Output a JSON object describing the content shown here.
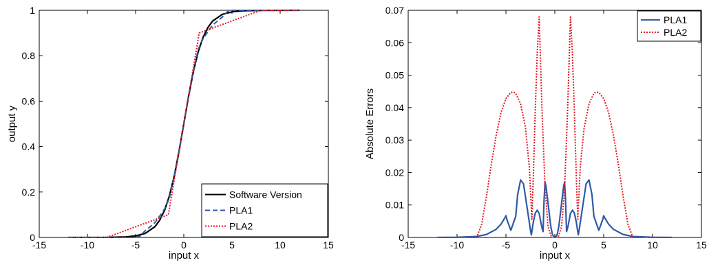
{
  "chart_data": [
    {
      "type": "line",
      "xlabel": "input x",
      "ylabel": "output y",
      "xlim": [
        -15,
        15
      ],
      "ylim": [
        0,
        1
      ],
      "xticks": [
        "-15",
        "-10",
        "-5",
        "0",
        "5",
        "10",
        "15"
      ],
      "yticks": [
        "0",
        "0.2",
        "0.4",
        "0.6",
        "0.8",
        "1"
      ],
      "grid": false,
      "legend_position": "bottom-right",
      "series": [
        {
          "name": "Software Version",
          "color": "#000000",
          "style": "solid",
          "x": [
            -12,
            -8,
            -6,
            -5,
            -4,
            -3,
            -2.5,
            -2,
            -1.5,
            -1,
            -0.5,
            0,
            0.5,
            1,
            1.5,
            2,
            2.5,
            3,
            4,
            5,
            6,
            8,
            12
          ],
          "y": [
            0.0,
            0.0003,
            0.0025,
            0.0067,
            0.018,
            0.047,
            0.076,
            0.119,
            0.182,
            0.269,
            0.378,
            0.5,
            0.622,
            0.731,
            0.818,
            0.881,
            0.924,
            0.953,
            0.982,
            0.993,
            0.9975,
            0.9997,
            1.0
          ]
        },
        {
          "name": "PLA1",
          "color": "#2e5aa8",
          "style": "dashed",
          "x": [
            -12,
            -5,
            -4.5,
            -4,
            -3.5,
            -3,
            -2.5,
            -2,
            -1.5,
            -1,
            -0.5,
            0,
            0.5,
            1,
            1.5,
            2,
            2.5,
            3,
            3.5,
            4,
            4.5,
            5,
            12
          ],
          "y": [
            0.0,
            0.0,
            0.007,
            0.03,
            0.047,
            0.065,
            0.094,
            0.125,
            0.172,
            0.267,
            0.375,
            0.5,
            0.625,
            0.733,
            0.828,
            0.875,
            0.906,
            0.935,
            0.953,
            0.97,
            0.993,
            1.0,
            1.0
          ]
        },
        {
          "name": "PLA2",
          "color": "#e8141c",
          "style": "dotted",
          "x": [
            -12,
            -8,
            -1.6,
            1.6,
            8,
            12
          ],
          "y": [
            0.0,
            0.0,
            0.1,
            0.9,
            1.0,
            1.0
          ]
        }
      ]
    },
    {
      "type": "line",
      "xlabel": "input x",
      "ylabel": "Absolute Errors",
      "xlim": [
        -15,
        15
      ],
      "ylim": [
        0,
        0.07
      ],
      "xticks": [
        "-15",
        "-10",
        "-5",
        "0",
        "5",
        "10",
        "15"
      ],
      "yticks": [
        "0",
        "0.01",
        "0.02",
        "0.03",
        "0.04",
        "0.05",
        "0.06",
        "0.07"
      ],
      "grid": false,
      "legend_position": "top-right",
      "series": [
        {
          "name": "PLA1",
          "color": "#2e5aa8",
          "style": "solid",
          "x": [
            -12,
            -10,
            -8,
            -7,
            -6,
            -5.5,
            -5.1,
            -5,
            -4.9,
            -4.5,
            -4,
            -3.8,
            -3.5,
            -3.2,
            -3,
            -2.8,
            -2.6,
            -2.5,
            -2.4,
            -2.2,
            -2,
            -1.8,
            -1.6,
            -1.5,
            -1.4,
            -1.3,
            -1.2,
            -1.1,
            -1,
            -0.9,
            -0.75,
            -0.6,
            -0.5,
            -0.4,
            -0.25,
            -0.1,
            0,
            0.1,
            0.25,
            0.4,
            0.5,
            0.6,
            0.75,
            0.9,
            1,
            1.1,
            1.2,
            1.3,
            1.4,
            1.5,
            1.6,
            1.8,
            2,
            2.2,
            2.4,
            2.5,
            2.6,
            2.8,
            3,
            3.2,
            3.5,
            3.8,
            4,
            4.5,
            4.9,
            5,
            5.1,
            5.5,
            6,
            7,
            8,
            10,
            12
          ],
          "y": [
            0.0,
            5e-05,
            0.0003,
            0.0009,
            0.0025,
            0.0041,
            0.0061,
            0.0067,
            0.0055,
            0.0022,
            0.0065,
            0.0132,
            0.0177,
            0.0165,
            0.0125,
            0.0085,
            0.0045,
            0.0024,
            0.0008,
            0.0047,
            0.0075,
            0.0084,
            0.0074,
            0.0058,
            0.0042,
            0.0028,
            0.0018,
            0.0115,
            0.017,
            0.0158,
            0.012,
            0.0082,
            0.0055,
            0.0032,
            0.001,
            0.0002,
            0.0,
            0.0002,
            0.001,
            0.0032,
            0.0055,
            0.0082,
            0.012,
            0.0158,
            0.017,
            0.0115,
            0.0018,
            0.0028,
            0.0042,
            0.0058,
            0.0074,
            0.0084,
            0.0075,
            0.0047,
            0.0008,
            0.0024,
            0.0045,
            0.0085,
            0.0125,
            0.0165,
            0.0177,
            0.0132,
            0.0065,
            0.0022,
            0.0055,
            0.0067,
            0.0061,
            0.0041,
            0.0025,
            0.0009,
            0.0003,
            5e-05,
            0.0
          ]
        },
        {
          "name": "PLA2",
          "color": "#e8141c",
          "style": "dotted",
          "x": [
            -12,
            -8,
            -7.5,
            -7,
            -6.5,
            -6,
            -5.5,
            -5,
            -4.5,
            -4.2,
            -4,
            -3.5,
            -3,
            -2.6,
            -2.35,
            -2.2,
            -2,
            -1.8,
            -1.6,
            -1.3,
            -1,
            -0.7,
            -0.4,
            -0.2,
            0,
            0.2,
            0.4,
            0.7,
            1,
            1.3,
            1.6,
            1.8,
            2,
            2.2,
            2.35,
            2.6,
            3,
            3.5,
            4,
            4.2,
            4.5,
            5,
            5.5,
            6,
            6.5,
            7,
            7.5,
            8,
            12
          ],
          "y": [
            0.0,
            0.0,
            0.0038,
            0.0125,
            0.0225,
            0.0315,
            0.0385,
            0.0428,
            0.0447,
            0.0448,
            0.0444,
            0.0412,
            0.0338,
            0.0215,
            0.0056,
            0.0185,
            0.039,
            0.0568,
            0.068,
            0.0385,
            0.0154,
            0.0035,
            0.0005,
            0.0001,
            0.0,
            0.0001,
            0.0005,
            0.0035,
            0.0154,
            0.0385,
            0.068,
            0.0568,
            0.039,
            0.0185,
            0.0056,
            0.0215,
            0.0338,
            0.0412,
            0.0444,
            0.0448,
            0.0447,
            0.0428,
            0.0385,
            0.0315,
            0.0225,
            0.0125,
            0.0038,
            0.0,
            0.0
          ]
        }
      ]
    }
  ]
}
